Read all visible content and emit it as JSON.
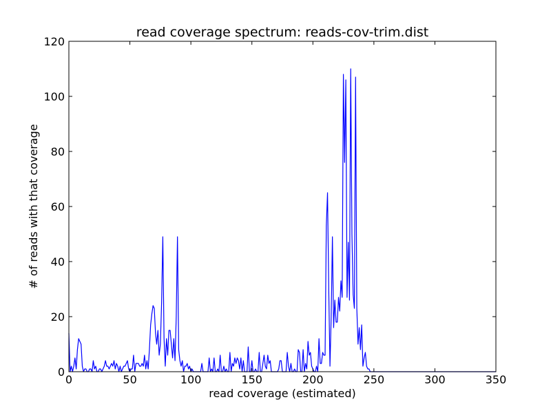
{
  "chart_data": {
    "type": "line",
    "title": "read coverage spectrum: reads-cov-trim.dist",
    "xlabel": "read coverage (estimated)",
    "ylabel": "# of reads with that coverage",
    "xlim": [
      0,
      350
    ],
    "xticks": [
      0,
      50,
      100,
      150,
      200,
      250,
      300,
      350
    ],
    "ylim": [
      0,
      120
    ],
    "yticks": [
      0,
      20,
      40,
      60,
      80,
      100,
      120
    ],
    "grid": false,
    "series": [
      {
        "color": "#0000ff",
        "x": [
          0,
          1,
          2,
          3,
          4,
          5,
          6,
          7,
          8,
          9,
          10,
          11,
          12,
          13,
          14,
          15,
          16,
          17,
          18,
          19,
          20,
          21,
          22,
          23,
          24,
          25,
          26,
          27,
          28,
          29,
          30,
          31,
          32,
          33,
          34,
          35,
          36,
          37,
          38,
          39,
          40,
          41,
          42,
          43,
          44,
          45,
          46,
          47,
          48,
          49,
          50,
          51,
          52,
          53,
          54,
          55,
          56,
          57,
          58,
          59,
          60,
          61,
          62,
          63,
          64,
          65,
          66,
          67,
          68,
          69,
          70,
          71,
          72,
          73,
          74,
          75,
          76,
          77,
          78,
          79,
          80,
          81,
          82,
          83,
          84,
          85,
          86,
          87,
          88,
          89,
          90,
          91,
          92,
          93,
          94,
          95,
          96,
          97,
          98,
          99,
          100,
          101,
          102,
          103,
          104,
          105,
          106,
          107,
          108,
          109,
          110,
          111,
          112,
          113,
          114,
          115,
          116,
          117,
          118,
          119,
          120,
          121,
          122,
          123,
          124,
          125,
          126,
          127,
          128,
          129,
          130,
          131,
          132,
          133,
          134,
          135,
          136,
          137,
          138,
          139,
          140,
          141,
          142,
          143,
          144,
          145,
          146,
          147,
          148,
          149,
          150,
          151,
          152,
          153,
          154,
          155,
          156,
          157,
          158,
          159,
          160,
          161,
          162,
          163,
          164,
          165,
          166,
          167,
          168,
          169,
          170,
          171,
          172,
          173,
          174,
          175,
          176,
          177,
          178,
          179,
          180,
          181,
          182,
          183,
          184,
          185,
          186,
          187,
          188,
          189,
          190,
          191,
          192,
          193,
          194,
          195,
          196,
          197,
          198,
          199,
          200,
          201,
          202,
          203,
          204,
          205,
          206,
          207,
          208,
          209,
          210,
          211,
          212,
          213,
          214,
          215,
          216,
          217,
          218,
          219,
          220,
          221,
          222,
          223,
          224,
          225,
          226,
          227,
          228,
          229,
          230,
          231,
          232,
          233,
          234,
          235,
          236,
          237,
          238,
          239,
          240,
          241,
          242,
          243,
          244,
          245,
          246,
          247,
          248,
          249,
          250,
          350
        ],
        "values": [
          14,
          0,
          2,
          0,
          2,
          5,
          1,
          8,
          12,
          11,
          10,
          2,
          0,
          1,
          1,
          0,
          0,
          1,
          1,
          0,
          4,
          1,
          2,
          0,
          0,
          1,
          1,
          0,
          1,
          2,
          4,
          2,
          2,
          1,
          2,
          3,
          2,
          4,
          1,
          3,
          2,
          0,
          2,
          0,
          1,
          2,
          2,
          3,
          4,
          1,
          0,
          1,
          1,
          6,
          0,
          3,
          3,
          3,
          2,
          2,
          3,
          2,
          6,
          1,
          4,
          1,
          8,
          17,
          21,
          24,
          23,
          14,
          10,
          15,
          6,
          10,
          25,
          49,
          12,
          2,
          12,
          6,
          15,
          15,
          10,
          5,
          12,
          4,
          20,
          49,
          8,
          4,
          2,
          4,
          0,
          2,
          2,
          3,
          1,
          2,
          0,
          1,
          0,
          0,
          0,
          0,
          0,
          0,
          0,
          3,
          0,
          0,
          0,
          0,
          0,
          5,
          0,
          1,
          0,
          5,
          0,
          0,
          1,
          0,
          6,
          0,
          0,
          2,
          0,
          1,
          0,
          0,
          7,
          0,
          3,
          2,
          5,
          3,
          5,
          4,
          1,
          5,
          0,
          4,
          0,
          0,
          0,
          9,
          0,
          0,
          4,
          0,
          0,
          1,
          0,
          0,
          7,
          0,
          0,
          3,
          6,
          2,
          1,
          6,
          3,
          4,
          0,
          0,
          0,
          0,
          0,
          0,
          1,
          4,
          4,
          0,
          0,
          0,
          0,
          7,
          2,
          0,
          3,
          0,
          0,
          1,
          0,
          0,
          8,
          7,
          0,
          0,
          8,
          0,
          3,
          1,
          11,
          6,
          7,
          2,
          1,
          0,
          0,
          2,
          0,
          12,
          3,
          3,
          7,
          6,
          6,
          53,
          65,
          30,
          2,
          20,
          49,
          16,
          26,
          18,
          18,
          27,
          22,
          33,
          27,
          108,
          76,
          106,
          27,
          47,
          26,
          110,
          50,
          28,
          23,
          107,
          23,
          10,
          16,
          8,
          17,
          2,
          5,
          7,
          2,
          1,
          1,
          0,
          0,
          0,
          0,
          0
        ]
      }
    ]
  }
}
